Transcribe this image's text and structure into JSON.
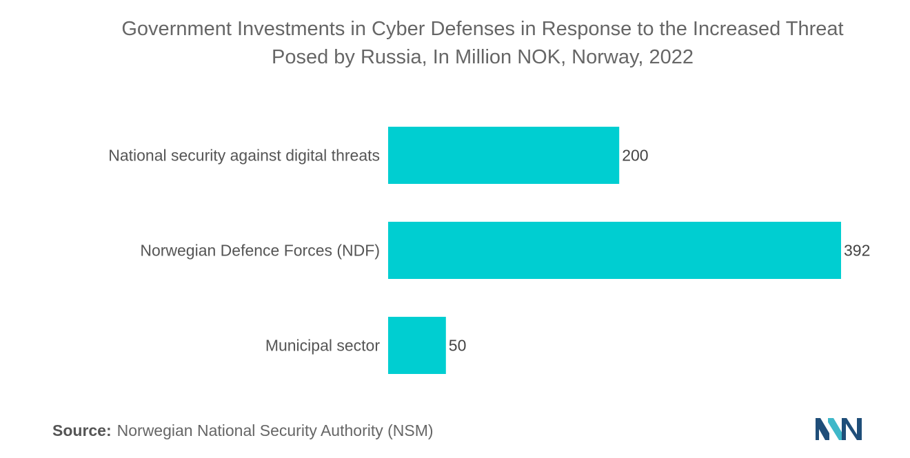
{
  "title_line1": "Government Investments in Cyber Defenses in Response to the Increased Threat",
  "title_line2": "Posed by Russia, In Million NOK, Norway, 2022",
  "source": {
    "label": "Source:",
    "text": "Norwegian National Security Authority (NSM)"
  },
  "colors": {
    "bar": "#00CED1",
    "logo_dark": "#1f4e79",
    "logo_light": "#3fb8c9"
  },
  "chart_data": {
    "type": "bar",
    "orientation": "horizontal",
    "title": "Government Investments in Cyber Defenses in Response to the Increased Threat Posed by Russia, In Million NOK, Norway, 2022",
    "categories": [
      "National security against digital threats",
      "Norwegian Defence Forces (NDF)",
      "Municipal sector"
    ],
    "values": [
      200,
      392,
      50
    ],
    "value_labels": [
      "200",
      "392",
      "50"
    ],
    "xlim": [
      0,
      392
    ],
    "grid": false,
    "legend": "none"
  }
}
